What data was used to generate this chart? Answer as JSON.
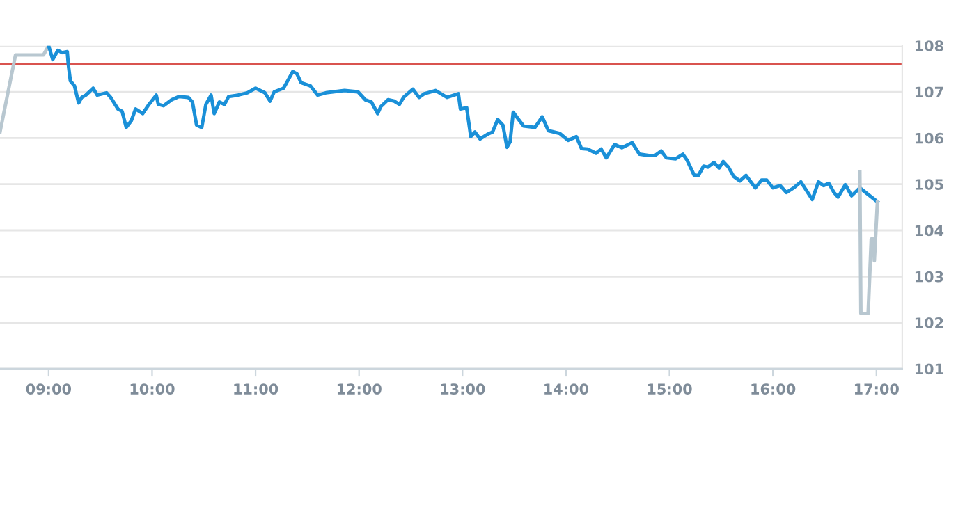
{
  "chart_data": {
    "type": "line",
    "series": [
      {
        "color": "#b8c7d0",
        "x": [
          8.53,
          8.68,
          8.95,
          9.0
        ],
        "values": [
          106.13,
          107.8,
          107.8,
          108.0
        ]
      },
      {
        "color": "#1a90d8",
        "x": [
          9.0,
          9.04,
          9.09,
          9.13,
          9.18,
          9.19,
          9.21,
          9.25,
          9.29,
          9.32,
          9.36,
          9.43,
          9.47,
          9.56,
          9.6,
          9.67,
          9.71,
          9.75,
          9.8,
          9.84,
          9.91,
          9.97,
          10.04,
          10.06,
          10.11,
          10.19,
          10.26,
          10.35,
          10.39,
          10.43,
          10.48,
          10.52,
          10.57,
          10.6,
          10.65,
          10.7,
          10.74,
          10.83,
          10.92,
          11.0,
          11.09,
          11.14,
          11.18,
          11.27,
          11.31,
          11.36,
          11.4,
          11.44,
          11.53,
          11.6,
          11.68,
          11.86,
          11.99,
          12.06,
          12.12,
          12.18,
          12.21,
          12.28,
          12.34,
          12.39,
          12.43,
          12.52,
          12.58,
          12.63,
          12.74,
          12.85,
          12.96,
          12.98,
          13.04,
          13.08,
          13.12,
          13.17,
          13.24,
          13.29,
          13.34,
          13.39,
          13.43,
          13.46,
          13.49,
          13.55,
          13.59,
          13.7,
          13.77,
          13.83,
          13.94,
          14.02,
          14.1,
          14.15,
          14.21,
          14.29,
          14.34,
          14.39,
          14.47,
          14.54,
          14.64,
          14.71,
          14.8,
          14.86,
          14.92,
          14.97,
          15.06,
          15.13,
          15.17,
          15.24,
          15.28,
          15.33,
          15.37,
          15.43,
          15.48,
          15.52,
          15.57,
          15.62,
          15.68,
          15.74,
          15.83,
          15.89,
          15.94,
          16.0,
          16.07,
          16.13,
          16.2,
          16.27,
          16.38,
          16.44,
          16.49,
          16.54,
          16.59,
          16.63,
          16.7,
          16.76,
          16.84,
          17.01
        ],
        "values": [
          108.0,
          107.7,
          107.9,
          107.85,
          107.87,
          107.6,
          107.24,
          107.13,
          106.76,
          106.88,
          106.93,
          107.08,
          106.93,
          106.98,
          106.88,
          106.63,
          106.58,
          106.23,
          106.38,
          106.63,
          106.53,
          106.73,
          106.93,
          106.73,
          106.7,
          106.83,
          106.9,
          106.88,
          106.78,
          106.28,
          106.23,
          106.73,
          106.93,
          106.53,
          106.78,
          106.73,
          106.9,
          106.93,
          106.98,
          107.08,
          106.98,
          106.8,
          107.0,
          107.08,
          107.24,
          107.44,
          107.39,
          107.2,
          107.13,
          106.93,
          106.98,
          107.03,
          107.0,
          106.83,
          106.78,
          106.53,
          106.68,
          106.83,
          106.8,
          106.73,
          106.88,
          107.06,
          106.88,
          106.96,
          107.03,
          106.88,
          106.96,
          106.63,
          106.66,
          106.03,
          106.13,
          105.98,
          106.08,
          106.13,
          106.4,
          106.28,
          105.8,
          105.92,
          106.56,
          106.38,
          106.26,
          106.23,
          106.46,
          106.16,
          106.1,
          105.95,
          106.03,
          105.77,
          105.76,
          105.67,
          105.76,
          105.57,
          105.86,
          105.79,
          105.9,
          105.65,
          105.62,
          105.62,
          105.72,
          105.57,
          105.55,
          105.65,
          105.52,
          105.19,
          105.19,
          105.39,
          105.37,
          105.47,
          105.35,
          105.49,
          105.37,
          105.17,
          105.07,
          105.19,
          104.92,
          105.09,
          105.09,
          104.92,
          104.97,
          104.82,
          104.92,
          105.05,
          104.67,
          105.05,
          104.97,
          105.02,
          104.82,
          104.72,
          104.99,
          104.75,
          104.92,
          104.62
        ]
      },
      {
        "color": "#b8c7d0",
        "x": [
          16.84,
          16.85,
          16.92,
          16.95,
          16.97,
          16.98,
          17.01
        ],
        "values": [
          105.27,
          102.2,
          102.2,
          103.81,
          103.81,
          103.34,
          104.62
        ]
      }
    ],
    "xlim": [
      8.53,
      17.25
    ],
    "xticks": [
      {
        "value": 9,
        "label": "09:00"
      },
      {
        "value": 10,
        "label": "10:00"
      },
      {
        "value": 11,
        "label": "11:00"
      },
      {
        "value": 12,
        "label": "12:00"
      },
      {
        "value": 13,
        "label": "13:00"
      },
      {
        "value": 14,
        "label": "14:00"
      },
      {
        "value": 15,
        "label": "15:00"
      },
      {
        "value": 16,
        "label": "16:00"
      },
      {
        "value": 17,
        "label": "17:00"
      }
    ],
    "ylim": [
      101,
      108
    ],
    "yticks": [
      101,
      102,
      103,
      104,
      105,
      106,
      107,
      108
    ],
    "ref_lines": [
      {
        "axis": "y",
        "value": 107.6,
        "color": "#d9534f"
      }
    ],
    "grid": "y",
    "legend": false,
    "marker": "none",
    "line_style": "solid"
  }
}
